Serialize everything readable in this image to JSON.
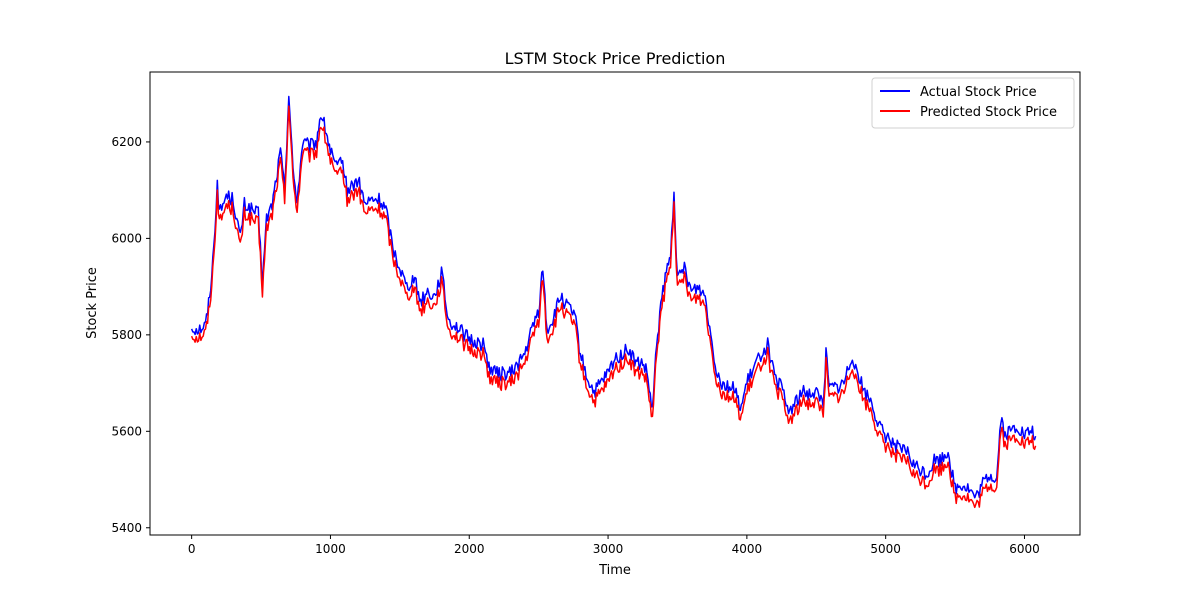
{
  "chart_data": {
    "type": "line",
    "title": "LSTM Stock Price Prediction",
    "xlabel": "Time",
    "ylabel": "Stock Price",
    "xlim": [
      -300,
      6400
    ],
    "ylim": [
      5385,
      6345
    ],
    "xticks": [
      0,
      1000,
      2000,
      3000,
      4000,
      5000,
      6000
    ],
    "yticks": [
      5400,
      5600,
      5800,
      6000,
      6200
    ],
    "grid": false,
    "legend": {
      "placement": "top-right"
    },
    "series": [
      {
        "name": "Actual Stock Price",
        "color": "#0000ff",
        "keypoints": [
          [
            0,
            5815
          ],
          [
            50,
            5812
          ],
          [
            100,
            5820
          ],
          [
            130,
            5880
          ],
          [
            160,
            5980
          ],
          [
            185,
            6120
          ],
          [
            200,
            6050
          ],
          [
            250,
            6090
          ],
          [
            300,
            6080
          ],
          [
            350,
            6000
          ],
          [
            380,
            6070
          ],
          [
            430,
            6060
          ],
          [
            480,
            6050
          ],
          [
            510,
            5910
          ],
          [
            540,
            6040
          ],
          [
            580,
            6070
          ],
          [
            640,
            6180
          ],
          [
            670,
            6100
          ],
          [
            700,
            6300
          ],
          [
            730,
            6140
          ],
          [
            760,
            6080
          ],
          [
            800,
            6200
          ],
          [
            850,
            6190
          ],
          [
            900,
            6200
          ],
          [
            930,
            6260
          ],
          [
            970,
            6220
          ],
          [
            1000,
            6180
          ],
          [
            1050,
            6140
          ],
          [
            1080,
            6170
          ],
          [
            1120,
            6100
          ],
          [
            1200,
            6120
          ],
          [
            1250,
            6070
          ],
          [
            1300,
            6080
          ],
          [
            1350,
            6080
          ],
          [
            1400,
            6060
          ],
          [
            1450,
            5980
          ],
          [
            1500,
            5940
          ],
          [
            1550,
            5900
          ],
          [
            1600,
            5920
          ],
          [
            1650,
            5870
          ],
          [
            1700,
            5890
          ],
          [
            1750,
            5880
          ],
          [
            1800,
            5930
          ],
          [
            1850,
            5830
          ],
          [
            1900,
            5820
          ],
          [
            2000,
            5790
          ],
          [
            2100,
            5780
          ],
          [
            2150,
            5730
          ],
          [
            2200,
            5720
          ],
          [
            2300,
            5720
          ],
          [
            2400,
            5760
          ],
          [
            2450,
            5810
          ],
          [
            2500,
            5850
          ],
          [
            2530,
            5940
          ],
          [
            2560,
            5810
          ],
          [
            2600,
            5830
          ],
          [
            2660,
            5880
          ],
          [
            2700,
            5860
          ],
          [
            2760,
            5840
          ],
          [
            2800,
            5760
          ],
          [
            2850,
            5710
          ],
          [
            2900,
            5680
          ],
          [
            3000,
            5720
          ],
          [
            3050,
            5750
          ],
          [
            3100,
            5760
          ],
          [
            3150,
            5770
          ],
          [
            3200,
            5740
          ],
          [
            3250,
            5740
          ],
          [
            3280,
            5720
          ],
          [
            3320,
            5640
          ],
          [
            3350,
            5780
          ],
          [
            3380,
            5860
          ],
          [
            3420,
            5930
          ],
          [
            3450,
            5960
          ],
          [
            3475,
            6100
          ],
          [
            3500,
            5910
          ],
          [
            3550,
            5940
          ],
          [
            3600,
            5890
          ],
          [
            3650,
            5900
          ],
          [
            3700,
            5880
          ],
          [
            3740,
            5800
          ],
          [
            3780,
            5730
          ],
          [
            3820,
            5700
          ],
          [
            3900,
            5690
          ],
          [
            3960,
            5650
          ],
          [
            4000,
            5700
          ],
          [
            4050,
            5730
          ],
          [
            4100,
            5760
          ],
          [
            4150,
            5780
          ],
          [
            4200,
            5710
          ],
          [
            4250,
            5690
          ],
          [
            4300,
            5640
          ],
          [
            4350,
            5660
          ],
          [
            4400,
            5680
          ],
          [
            4450,
            5680
          ],
          [
            4500,
            5680
          ],
          [
            4550,
            5660
          ],
          [
            4570,
            5760
          ],
          [
            4600,
            5690
          ],
          [
            4650,
            5690
          ],
          [
            4700,
            5700
          ],
          [
            4760,
            5760
          ],
          [
            4800,
            5720
          ],
          [
            4850,
            5680
          ],
          [
            4900,
            5660
          ],
          [
            4950,
            5610
          ],
          [
            5000,
            5590
          ],
          [
            5050,
            5580
          ],
          [
            5100,
            5560
          ],
          [
            5150,
            5560
          ],
          [
            5200,
            5530
          ],
          [
            5250,
            5520
          ],
          [
            5300,
            5510
          ],
          [
            5350,
            5540
          ],
          [
            5400,
            5540
          ],
          [
            5450,
            5560
          ],
          [
            5500,
            5480
          ],
          [
            5550,
            5490
          ],
          [
            5600,
            5480
          ],
          [
            5650,
            5460
          ],
          [
            5700,
            5490
          ],
          [
            5750,
            5510
          ],
          [
            5800,
            5500
          ],
          [
            5830,
            5630
          ],
          [
            5860,
            5590
          ],
          [
            5900,
            5600
          ],
          [
            5950,
            5610
          ],
          [
            6000,
            5590
          ],
          [
            6050,
            5600
          ],
          [
            6080,
            5590
          ]
        ]
      },
      {
        "name": "Predicted Stock Price",
        "color": "#ff0000",
        "keypoints": [
          [
            0,
            5800
          ],
          [
            50,
            5795
          ],
          [
            100,
            5805
          ],
          [
            130,
            5860
          ],
          [
            160,
            5960
          ],
          [
            185,
            6100
          ],
          [
            200,
            6030
          ],
          [
            250,
            6070
          ],
          [
            300,
            6060
          ],
          [
            350,
            5980
          ],
          [
            380,
            6050
          ],
          [
            430,
            6040
          ],
          [
            480,
            6030
          ],
          [
            510,
            5890
          ],
          [
            540,
            6020
          ],
          [
            580,
            6050
          ],
          [
            640,
            6160
          ],
          [
            670,
            6080
          ],
          [
            700,
            6280
          ],
          [
            730,
            6120
          ],
          [
            760,
            6060
          ],
          [
            800,
            6180
          ],
          [
            850,
            6170
          ],
          [
            900,
            6180
          ],
          [
            930,
            6240
          ],
          [
            970,
            6200
          ],
          [
            1000,
            6160
          ],
          [
            1050,
            6120
          ],
          [
            1080,
            6150
          ],
          [
            1120,
            6080
          ],
          [
            1200,
            6100
          ],
          [
            1250,
            6050
          ],
          [
            1300,
            6060
          ],
          [
            1350,
            6060
          ],
          [
            1400,
            6040
          ],
          [
            1450,
            5960
          ],
          [
            1500,
            5920
          ],
          [
            1550,
            5880
          ],
          [
            1600,
            5900
          ],
          [
            1650,
            5850
          ],
          [
            1700,
            5870
          ],
          [
            1750,
            5860
          ],
          [
            1800,
            5910
          ],
          [
            1850,
            5810
          ],
          [
            1900,
            5800
          ],
          [
            2000,
            5770
          ],
          [
            2100,
            5760
          ],
          [
            2150,
            5710
          ],
          [
            2200,
            5700
          ],
          [
            2300,
            5700
          ],
          [
            2400,
            5740
          ],
          [
            2450,
            5790
          ],
          [
            2500,
            5830
          ],
          [
            2530,
            5920
          ],
          [
            2560,
            5790
          ],
          [
            2600,
            5810
          ],
          [
            2660,
            5860
          ],
          [
            2700,
            5840
          ],
          [
            2760,
            5820
          ],
          [
            2800,
            5740
          ],
          [
            2850,
            5690
          ],
          [
            2900,
            5660
          ],
          [
            3000,
            5700
          ],
          [
            3050,
            5730
          ],
          [
            3100,
            5740
          ],
          [
            3150,
            5750
          ],
          [
            3200,
            5720
          ],
          [
            3250,
            5720
          ],
          [
            3280,
            5700
          ],
          [
            3320,
            5620
          ],
          [
            3350,
            5760
          ],
          [
            3380,
            5840
          ],
          [
            3420,
            5910
          ],
          [
            3450,
            5940
          ],
          [
            3475,
            6080
          ],
          [
            3500,
            5890
          ],
          [
            3550,
            5920
          ],
          [
            3600,
            5870
          ],
          [
            3650,
            5880
          ],
          [
            3700,
            5860
          ],
          [
            3740,
            5780
          ],
          [
            3780,
            5710
          ],
          [
            3820,
            5680
          ],
          [
            3900,
            5670
          ],
          [
            3960,
            5630
          ],
          [
            4000,
            5680
          ],
          [
            4050,
            5710
          ],
          [
            4100,
            5740
          ],
          [
            4150,
            5760
          ],
          [
            4200,
            5690
          ],
          [
            4250,
            5670
          ],
          [
            4300,
            5620
          ],
          [
            4350,
            5640
          ],
          [
            4400,
            5660
          ],
          [
            4450,
            5660
          ],
          [
            4500,
            5660
          ],
          [
            4550,
            5640
          ],
          [
            4570,
            5740
          ],
          [
            4600,
            5670
          ],
          [
            4650,
            5670
          ],
          [
            4700,
            5680
          ],
          [
            4760,
            5740
          ],
          [
            4800,
            5700
          ],
          [
            4850,
            5660
          ],
          [
            4900,
            5640
          ],
          [
            4950,
            5590
          ],
          [
            5000,
            5570
          ],
          [
            5050,
            5560
          ],
          [
            5100,
            5540
          ],
          [
            5150,
            5540
          ],
          [
            5200,
            5510
          ],
          [
            5250,
            5500
          ],
          [
            5300,
            5490
          ],
          [
            5350,
            5520
          ],
          [
            5400,
            5520
          ],
          [
            5450,
            5540
          ],
          [
            5500,
            5460
          ],
          [
            5550,
            5470
          ],
          [
            5600,
            5460
          ],
          [
            5650,
            5440
          ],
          [
            5700,
            5470
          ],
          [
            5750,
            5490
          ],
          [
            5800,
            5480
          ],
          [
            5830,
            5610
          ],
          [
            5860,
            5570
          ],
          [
            5900,
            5580
          ],
          [
            5950,
            5590
          ],
          [
            6000,
            5570
          ],
          [
            6050,
            5580
          ],
          [
            6080,
            5570
          ]
        ]
      }
    ]
  }
}
